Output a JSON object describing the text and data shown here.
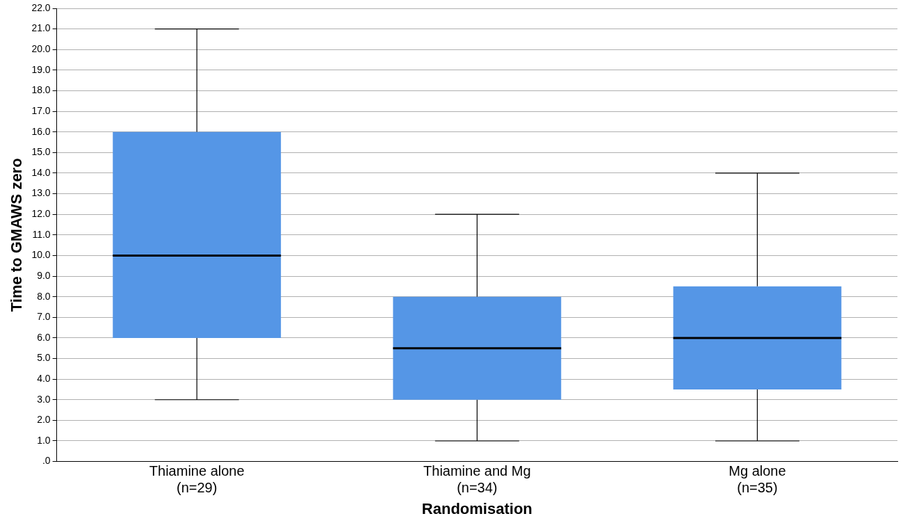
{
  "chart_data": {
    "type": "box",
    "xlabel": "Randomisation",
    "ylabel": "Time to GMAWS zero",
    "categories": [
      "Thiamine alone\n(n=29)",
      "Thiamine and Mg\n(n=34)",
      "Mg alone\n(n=35)"
    ],
    "series": [
      {
        "color": "#5596e6",
        "boxes": [
          {
            "low": 3,
            "q1": 6,
            "median": 10,
            "q3": 16,
            "high": 21
          },
          {
            "low": 1,
            "q1": 3,
            "median": 5.5,
            "q3": 8,
            "high": 12
          },
          {
            "low": 1,
            "q1": 3.5,
            "median": 6,
            "q3": 8.5,
            "high": 14
          }
        ]
      }
    ],
    "ylim": [
      0,
      22
    ],
    "yticks": [
      {
        "value": 0,
        "label": ".0"
      },
      {
        "value": 1,
        "label": "1.0"
      },
      {
        "value": 2,
        "label": "2.0"
      },
      {
        "value": 3,
        "label": "3.0"
      },
      {
        "value": 4,
        "label": "4.0"
      },
      {
        "value": 5,
        "label": "5.0"
      },
      {
        "value": 6,
        "label": "6.0"
      },
      {
        "value": 7,
        "label": "7.0"
      },
      {
        "value": 8,
        "label": "8.0"
      },
      {
        "value": 9,
        "label": "9.0"
      },
      {
        "value": 10,
        "label": "10.0"
      },
      {
        "value": 11,
        "label": "11.0"
      },
      {
        "value": 12,
        "label": "12.0"
      },
      {
        "value": 13,
        "label": "13.0"
      },
      {
        "value": 14,
        "label": "14.0"
      },
      {
        "value": 15,
        "label": "15.0"
      },
      {
        "value": 16,
        "label": "16.0"
      },
      {
        "value": 17,
        "label": "17.0"
      },
      {
        "value": 18,
        "label": "18.0"
      },
      {
        "value": 19,
        "label": "19.0"
      },
      {
        "value": 20,
        "label": "20.0"
      },
      {
        "value": 21,
        "label": "21.0"
      },
      {
        "value": 22,
        "label": "22.0"
      }
    ],
    "grid": "y",
    "legend": false
  }
}
